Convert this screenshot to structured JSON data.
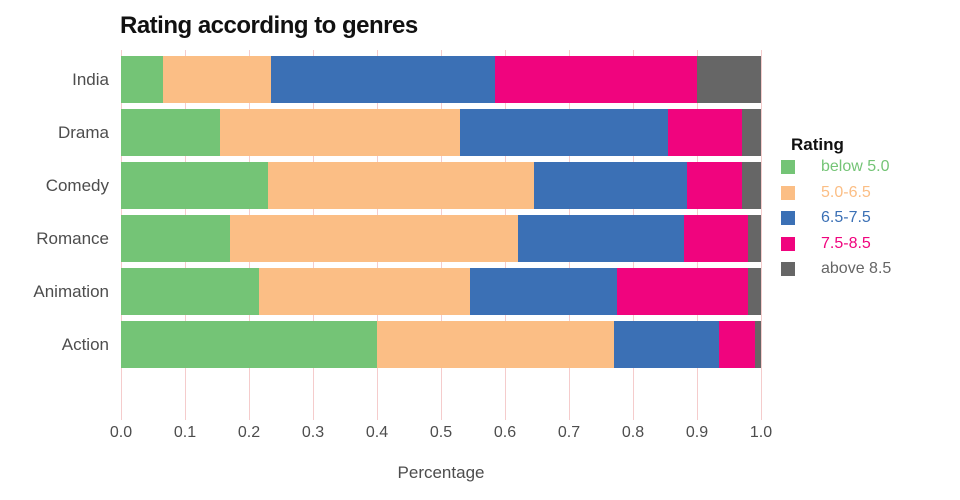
{
  "chart_data": {
    "type": "bar",
    "variant": "horizontal-stacked",
    "title": "Rating according to genres",
    "xlabel": "Percentage",
    "xlim": [
      0.0,
      1.0
    ],
    "xticks": [
      "0.0",
      "0.1",
      "0.2",
      "0.3",
      "0.4",
      "0.5",
      "0.6",
      "0.7",
      "0.8",
      "0.9",
      "1.0"
    ],
    "grid": true,
    "gridline_color": "#f5cccc",
    "categories_top_to_bottom": [
      "India",
      "Drama",
      "Comedy",
      "Romance",
      "Animation",
      "Action"
    ],
    "series": [
      {
        "name": "below 5.0",
        "color": "#74c476",
        "values": [
          0.065,
          0.155,
          0.23,
          0.17,
          0.215,
          0.4
        ]
      },
      {
        "name": "5.0-6.5",
        "color": "#fbbe85",
        "values": [
          0.17,
          0.375,
          0.415,
          0.45,
          0.33,
          0.37
        ]
      },
      {
        "name": "6.5-7.5",
        "color": "#3b70b5",
        "values": [
          0.35,
          0.325,
          0.24,
          0.26,
          0.23,
          0.165
        ]
      },
      {
        "name": "7.5-8.5",
        "color": "#f0047e",
        "values": [
          0.315,
          0.115,
          0.085,
          0.1,
          0.205,
          0.055
        ]
      },
      {
        "name": "above 8.5",
        "color": "#666666",
        "values": [
          0.1,
          0.03,
          0.03,
          0.02,
          0.02,
          0.01
        ]
      }
    ],
    "legend": {
      "title": "Rating",
      "position": "right",
      "labels_colored_to_match_swatch": true
    }
  },
  "text_colors": {
    "title": "#111111",
    "axis_labels": "#4d4d4d"
  }
}
